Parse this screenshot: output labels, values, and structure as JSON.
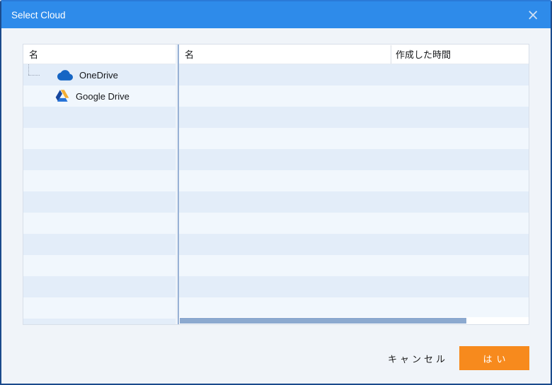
{
  "window": {
    "title": "Select Cloud",
    "close_icon": "×"
  },
  "left_panel": {
    "header": "名",
    "items": [
      {
        "label": "OneDrive",
        "icon": "onedrive-cloud-icon"
      },
      {
        "label": "Google Drive",
        "icon": "google-drive-icon"
      }
    ]
  },
  "right_panel": {
    "columns": [
      "名",
      "作成した時間"
    ],
    "rows": [],
    "h_scrollbar": {
      "thumb_percent": 82
    }
  },
  "footer": {
    "cancel_label": "キャンセル",
    "ok_label": "はい"
  },
  "colors": {
    "titlebar_blue": "#2e8bea",
    "window_border": "#1a4a8c",
    "background": "#f0f4f9",
    "row_dark": "#e3edf9",
    "row_light": "#f1f7fd",
    "splitter_line": "#98b1d5",
    "scroll_thumb": "#8ca9cf",
    "ok_orange": "#f78a1d",
    "onedrive_blue": "#1565c4",
    "gdrive_yellow": "#f3ae35",
    "gdrive_blue": "#2472d8"
  }
}
